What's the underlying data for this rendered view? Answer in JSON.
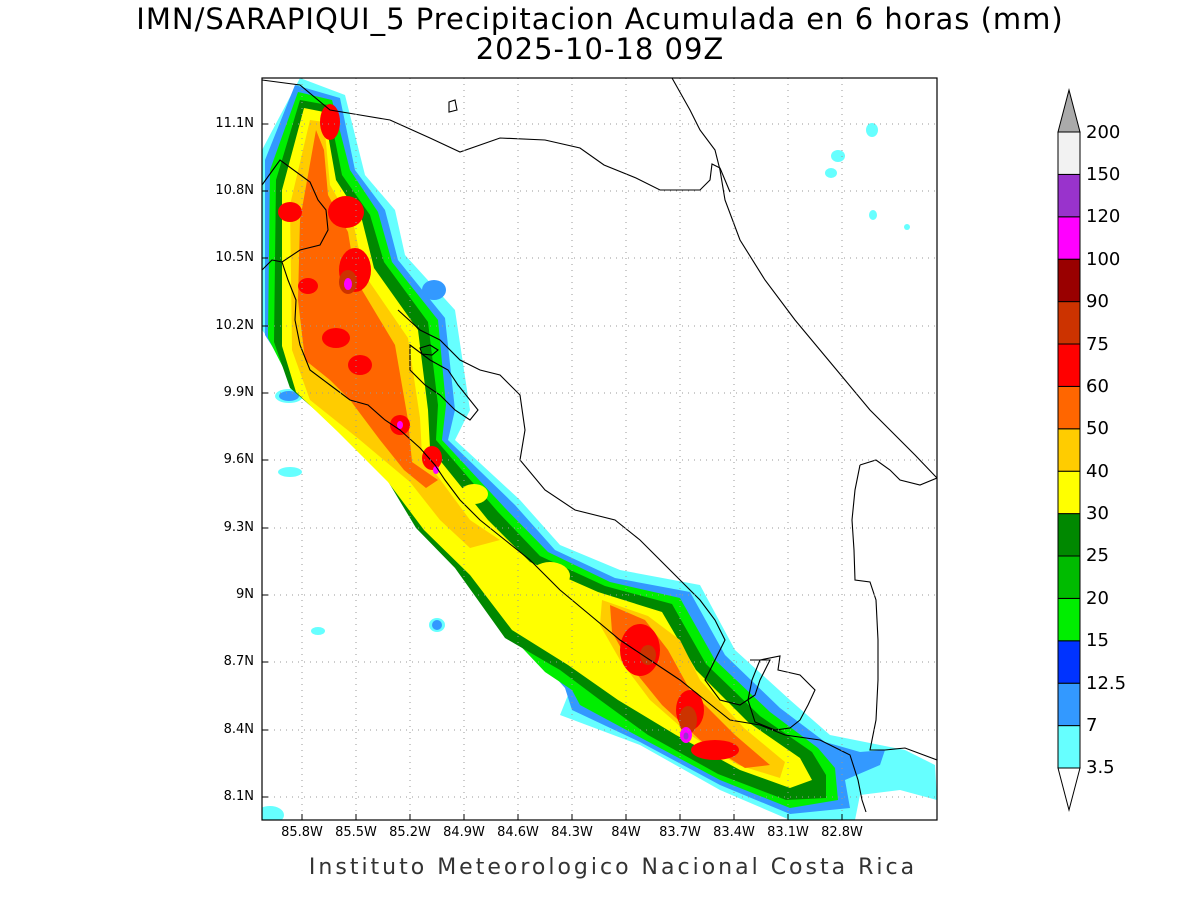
{
  "title": {
    "line1": "IMN/SARAPIQUI_5 Precipitacion Acumulada en 6 horas (mm)",
    "line2": "2025-10-18 09Z"
  },
  "map": {
    "lat_labels": [
      "11.1N",
      "10.8N",
      "10.5N",
      "10.2N",
      "9.9N",
      "9.6N",
      "9.3N",
      "9N",
      "8.7N",
      "8.4N",
      "8.1N"
    ],
    "lon_labels": [
      "85.8W",
      "85.5W",
      "85.2W",
      "84.9W",
      "84.6W",
      "84.3W",
      "84W",
      "83.7W",
      "83.4W",
      "83.1W",
      "82.8W"
    ]
  },
  "colorbar": {
    "levels": [
      "3.5",
      "7",
      "12.5",
      "15",
      "20",
      "25",
      "30",
      "40",
      "50",
      "60",
      "75",
      "90",
      "100",
      "120",
      "150",
      "200"
    ],
    "colors": [
      "#66ffff",
      "#3399ff",
      "#0033ff",
      "#00ee00",
      "#00bb00",
      "#008800",
      "#ffff00",
      "#ffcc00",
      "#ff6600",
      "#ff0000",
      "#cc3300",
      "#990000",
      "#ff00ff",
      "#9933cc",
      "#f2f2f2",
      "#aaaaaa"
    ]
  },
  "footer": "Instituto Meteorologico Nacional Costa Rica"
}
